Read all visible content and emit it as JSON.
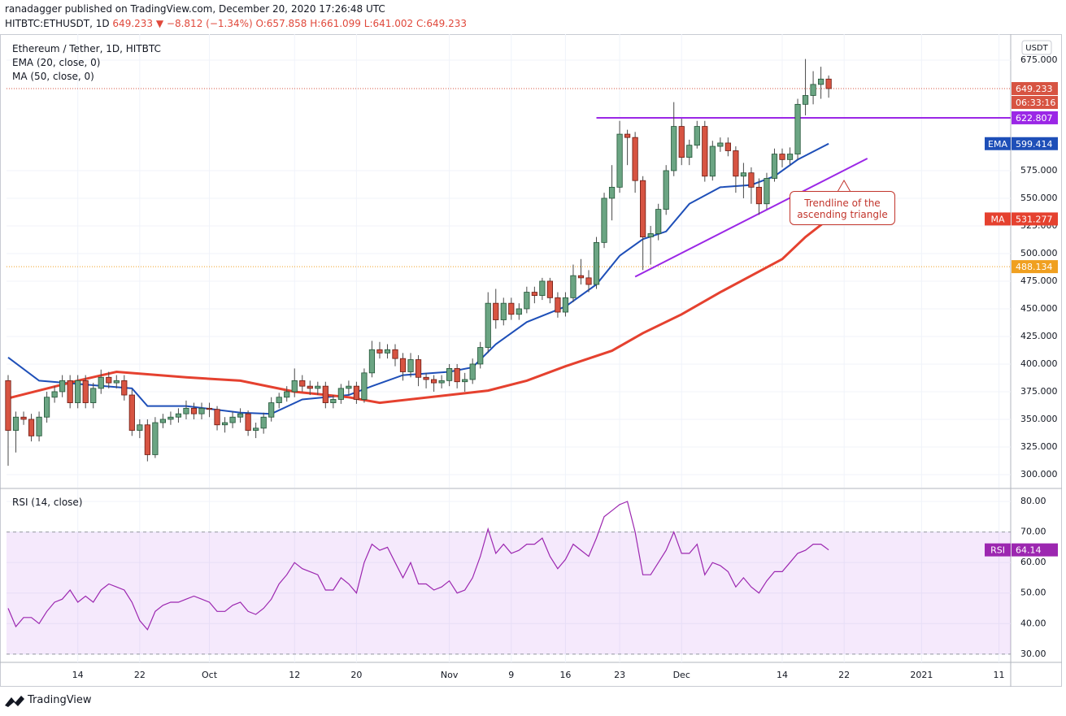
{
  "header": {
    "published": "ranadagger published on TradingView.com, December 20, 2020 17:26:48 UTC",
    "symbol": "HITBTC:ETHUSDT, 1D",
    "last": "649.233",
    "change": "▼ −8.812 (−1.34%)",
    "ohlc": [
      "O:657.858",
      "H:661.099",
      "L:641.002",
      "C:649.233"
    ]
  },
  "chart_data": {
    "type": "candlestick",
    "title": "Ethereum / Tether, 1D, HITBTC",
    "currency": "USDT",
    "up_color": "#6ba583",
    "down_color": "#d75442",
    "grid": true,
    "x": [
      "2020-09-05",
      "2020-09-06",
      "2020-09-07",
      "2020-09-08",
      "2020-09-09",
      "2020-09-10",
      "2020-09-11",
      "2020-09-12",
      "2020-09-13",
      "2020-09-14",
      "2020-09-15",
      "2020-09-16",
      "2020-09-17",
      "2020-09-18",
      "2020-09-19",
      "2020-09-20",
      "2020-09-21",
      "2020-09-22",
      "2020-09-23",
      "2020-09-24",
      "2020-09-25",
      "2020-09-26",
      "2020-09-27",
      "2020-09-28",
      "2020-09-29",
      "2020-09-30",
      "2020-10-01",
      "2020-10-02",
      "2020-10-03",
      "2020-10-04",
      "2020-10-05",
      "2020-10-06",
      "2020-10-07",
      "2020-10-08",
      "2020-10-09",
      "2020-10-10",
      "2020-10-11",
      "2020-10-12",
      "2020-10-13",
      "2020-10-14",
      "2020-10-15",
      "2020-10-16",
      "2020-10-17",
      "2020-10-18",
      "2020-10-19",
      "2020-10-20",
      "2020-10-21",
      "2020-10-22",
      "2020-10-23",
      "2020-10-24",
      "2020-10-25",
      "2020-10-26",
      "2020-10-27",
      "2020-10-28",
      "2020-10-29",
      "2020-10-30",
      "2020-10-31",
      "2020-11-01",
      "2020-11-02",
      "2020-11-03",
      "2020-11-04",
      "2020-11-05",
      "2020-11-06",
      "2020-11-07",
      "2020-11-08",
      "2020-11-09",
      "2020-11-10",
      "2020-11-11",
      "2020-11-12",
      "2020-11-13",
      "2020-11-14",
      "2020-11-15",
      "2020-11-16",
      "2020-11-17",
      "2020-11-18",
      "2020-11-19",
      "2020-11-20",
      "2020-11-21",
      "2020-11-22",
      "2020-11-23",
      "2020-11-24",
      "2020-11-25",
      "2020-11-26",
      "2020-11-27",
      "2020-11-28",
      "2020-11-29",
      "2020-11-30",
      "2020-12-01",
      "2020-12-02",
      "2020-12-03",
      "2020-12-04",
      "2020-12-05",
      "2020-12-06",
      "2020-12-07",
      "2020-12-08",
      "2020-12-09",
      "2020-12-10",
      "2020-12-11",
      "2020-12-12",
      "2020-12-13",
      "2020-12-14",
      "2020-12-15",
      "2020-12-16",
      "2020-12-17",
      "2020-12-18",
      "2020-12-19",
      "2020-12-20"
    ],
    "open": [
      385,
      340,
      352,
      350,
      335,
      352,
      370,
      375,
      385,
      365,
      385,
      365,
      378,
      388,
      383,
      385,
      372,
      340,
      345,
      318,
      347,
      350,
      352,
      355,
      360,
      355,
      360,
      359,
      345,
      347,
      352,
      355,
      340,
      342,
      352,
      365,
      370,
      375,
      385,
      380,
      378,
      380,
      365,
      368,
      378,
      380,
      368,
      392,
      413,
      410,
      413,
      405,
      393,
      404,
      388,
      386,
      383,
      385,
      396,
      384,
      386,
      400,
      415,
      455,
      440,
      455,
      445,
      450,
      465,
      462,
      475,
      460,
      447,
      460,
      480,
      478,
      472,
      510,
      550,
      560,
      608,
      605,
      566,
      515,
      518,
      540,
      575,
      615,
      587,
      598,
      615,
      570,
      597,
      600,
      593,
      570,
      573,
      560,
      545,
      568,
      590,
      585,
      590,
      635,
      643,
      653,
      657.858
    ],
    "high": [
      390,
      357,
      357,
      355,
      357,
      375,
      380,
      390,
      390,
      390,
      390,
      383,
      395,
      393,
      390,
      390,
      377,
      350,
      350,
      352,
      355,
      357,
      360,
      367,
      365,
      365,
      365,
      362,
      352,
      357,
      360,
      358,
      347,
      356,
      370,
      374,
      380,
      396,
      390,
      385,
      384,
      384,
      372,
      382,
      385,
      384,
      396,
      421,
      420,
      418,
      418,
      410,
      410,
      408,
      392,
      390,
      390,
      400,
      400,
      392,
      405,
      420,
      465,
      468,
      460,
      460,
      455,
      470,
      470,
      478,
      478,
      465,
      465,
      490,
      495,
      485,
      515,
      555,
      580,
      620,
      612,
      610,
      570,
      525,
      545,
      580,
      637,
      622,
      603,
      620,
      620,
      602,
      605,
      605,
      597,
      582,
      578,
      568,
      573,
      595,
      595,
      596,
      640,
      676,
      665,
      669,
      661.099
    ],
    "low": [
      308,
      320,
      345,
      330,
      330,
      347,
      365,
      370,
      360,
      360,
      360,
      360,
      373,
      378,
      378,
      367,
      335,
      333,
      312,
      315,
      342,
      345,
      347,
      350,
      350,
      350,
      352,
      340,
      338,
      342,
      347,
      335,
      333,
      337,
      348,
      360,
      366,
      370,
      375,
      372,
      372,
      360,
      360,
      364,
      372,
      364,
      365,
      388,
      405,
      405,
      398,
      385,
      388,
      380,
      378,
      375,
      378,
      380,
      378,
      375,
      382,
      396,
      410,
      432,
      435,
      440,
      440,
      446,
      455,
      458,
      455,
      442,
      443,
      456,
      472,
      465,
      468,
      505,
      530,
      555,
      580,
      555,
      485,
      490,
      512,
      535,
      570,
      580,
      580,
      595,
      565,
      566,
      592,
      588,
      555,
      550,
      545,
      535,
      540,
      565,
      578,
      580,
      585,
      625,
      635,
      640,
      641.002
    ],
    "close": [
      340,
      352,
      350,
      335,
      352,
      370,
      375,
      385,
      365,
      385,
      365,
      378,
      388,
      383,
      385,
      372,
      340,
      345,
      318,
      347,
      350,
      352,
      355,
      360,
      355,
      360,
      359,
      345,
      347,
      352,
      355,
      340,
      342,
      352,
      365,
      370,
      375,
      385,
      380,
      378,
      380,
      365,
      368,
      378,
      380,
      368,
      392,
      413,
      410,
      413,
      405,
      393,
      404,
      388,
      386,
      383,
      385,
      396,
      384,
      386,
      400,
      415,
      455,
      440,
      455,
      445,
      450,
      465,
      462,
      475,
      460,
      447,
      460,
      480,
      478,
      472,
      510,
      550,
      560,
      608,
      605,
      566,
      515,
      518,
      540,
      575,
      615,
      587,
      598,
      615,
      570,
      597,
      600,
      593,
      570,
      573,
      560,
      545,
      568,
      590,
      585,
      590,
      635,
      643,
      653,
      657.858,
      649.233
    ],
    "ylim": [
      288.2,
      698.5
    ],
    "yticks": [
      {
        "value": 675,
        "label": "675.000"
      },
      {
        "value": 575,
        "label": "575.000"
      },
      {
        "value": 550,
        "label": "550.000"
      },
      {
        "value": 525,
        "label": "525.000"
      },
      {
        "value": 500,
        "label": "500.000"
      },
      {
        "value": 475,
        "label": "475.000"
      },
      {
        "value": 450,
        "label": "450.000"
      },
      {
        "value": 425,
        "label": "425.000"
      },
      {
        "value": 400,
        "label": "400.000"
      },
      {
        "value": 375,
        "label": "375.000"
      },
      {
        "value": 350,
        "label": "350.000"
      },
      {
        "value": 325,
        "label": "325.000"
      },
      {
        "value": 300,
        "label": "300.000"
      }
    ],
    "xticks": [
      {
        "value": "2020-09-14",
        "label": "14"
      },
      {
        "value": "2020-09-22",
        "label": "22"
      },
      {
        "value": "2020-10-01",
        "label": "Oct"
      },
      {
        "value": "2020-10-12",
        "label": "12"
      },
      {
        "value": "2020-10-20",
        "label": "20"
      },
      {
        "value": "2020-11-01",
        "label": "Nov"
      },
      {
        "value": "2020-11-09",
        "label": "9"
      },
      {
        "value": "2020-11-16",
        "label": "16"
      },
      {
        "value": "2020-11-23",
        "label": "23"
      },
      {
        "value": "2020-12-01",
        "label": "Dec"
      },
      {
        "value": "2020-12-14",
        "label": "14"
      },
      {
        "value": "2020-12-22",
        "label": "22"
      },
      {
        "value": "2021-01-01",
        "label": "2021"
      },
      {
        "value": "2021-01-11",
        "label": "11"
      }
    ],
    "series": [
      {
        "name": "EMA (20, close, 0)",
        "tag": "EMA",
        "color": "#1e4fb8",
        "x": [
          "2020-09-05",
          "2020-09-09",
          "2020-09-14",
          "2020-09-21",
          "2020-09-23",
          "2020-09-28",
          "2020-10-05",
          "2020-10-09",
          "2020-10-13",
          "2020-10-19",
          "2020-10-22",
          "2020-10-26",
          "2020-11-01",
          "2020-11-04",
          "2020-11-07",
          "2020-11-11",
          "2020-11-16",
          "2020-11-20",
          "2020-11-23",
          "2020-11-26",
          "2020-11-29",
          "2020-12-02",
          "2020-12-06",
          "2020-12-10",
          "2020-12-13",
          "2020-12-16",
          "2020-12-20"
        ],
        "values": [
          406,
          385,
          382,
          378,
          362,
          362,
          356,
          355,
          368,
          372,
          380,
          390,
          393,
          397,
          418,
          438,
          452,
          472,
          498,
          513,
          520,
          545,
          560,
          562,
          570,
          585,
          599.414
        ]
      },
      {
        "name": "MA (50, close, 0)",
        "tag": "MA",
        "color": "#e5412f",
        "x": [
          "2020-09-05",
          "2020-09-14",
          "2020-09-19",
          "2020-09-28",
          "2020-10-05",
          "2020-10-12",
          "2020-10-19",
          "2020-10-23",
          "2020-11-01",
          "2020-11-06",
          "2020-11-11",
          "2020-11-16",
          "2020-11-22",
          "2020-11-26",
          "2020-12-01",
          "2020-12-06",
          "2020-12-10",
          "2020-12-14",
          "2020-12-17",
          "2020-12-20"
        ],
        "values": [
          369,
          385,
          393,
          388,
          385,
          375,
          370,
          365,
          372,
          376,
          385,
          398,
          412,
          428,
          445,
          465,
          480,
          495,
          515,
          531.277
        ]
      }
    ],
    "countdown": "06:33:16",
    "resistance": {
      "value": 622.807,
      "start": "2020-11-20",
      "color": "#9b27e6"
    },
    "level": {
      "value": 488.134,
      "color": "#f0a020"
    },
    "trendline": {
      "start": {
        "x": "2020-11-25",
        "value": 479
      },
      "end": {
        "x": "2020-12-25",
        "value": 586
      },
      "color": "#9b27e6"
    },
    "annotation": "Trendline of the ascending triangle",
    "rsi": {
      "type": "line",
      "title": "RSI (14, close)",
      "tag": "RSI",
      "color": "#9c27b0",
      "values": [
        45,
        39,
        42,
        42,
        40,
        44,
        47,
        48,
        51,
        47,
        49,
        47,
        51,
        53,
        52,
        51,
        47,
        41,
        38,
        44,
        46,
        47,
        47,
        48,
        49,
        48,
        47,
        44,
        44,
        46,
        47,
        44,
        43,
        45,
        48,
        53,
        56,
        60,
        58,
        57,
        56,
        51,
        51,
        55,
        53,
        50,
        60,
        66,
        64,
        65,
        60,
        55,
        60,
        53,
        53,
        51,
        52,
        54,
        50,
        51,
        55,
        62,
        71,
        63,
        66,
        63,
        64,
        66,
        66,
        68,
        62,
        58,
        61,
        66,
        64,
        62,
        68,
        75,
        77,
        79,
        80,
        70,
        56,
        56,
        60,
        64,
        70,
        63,
        63,
        66,
        56,
        60,
        59,
        57,
        52,
        55,
        52,
        50,
        54,
        57,
        57,
        60,
        63,
        64,
        66,
        66,
        64.14
      ],
      "ylim": [
        27.3,
        84
      ],
      "yticks": [
        {
          "value": 80,
          "label": "80.00"
        },
        {
          "value": 70,
          "label": "70.00"
        },
        {
          "value": 60,
          "label": "60.00"
        },
        {
          "value": 50,
          "label": "50.00"
        },
        {
          "value": 40,
          "label": "40.00"
        },
        {
          "value": 30,
          "label": "30.00"
        }
      ],
      "band": [
        30,
        70
      ]
    }
  },
  "footer": "TradingView"
}
